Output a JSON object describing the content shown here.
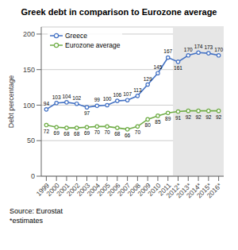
{
  "chart_data": {
    "type": "line",
    "title": "Greek debt in comparison to Eurozone average",
    "ylabel": "Debt percentage",
    "categories": [
      "1999",
      "2000",
      "2001",
      "2002",
      "2003",
      "2004",
      "2005",
      "2006",
      "2007",
      "2008",
      "2009",
      "2010",
      "2011",
      "2012*",
      "2013*",
      "2014*",
      "2015*",
      "2016*"
    ],
    "series": [
      {
        "name": "Greece",
        "color": "#4472C4",
        "values": [
          94,
          103,
          104,
          102,
          97,
          99,
          100,
          106,
          107,
          113,
          129,
          145,
          167,
          161,
          170,
          174,
          173,
          170
        ]
      },
      {
        "name": "Eurozone average",
        "color": "#70AD47",
        "values": [
          72,
          69,
          68,
          68,
          69,
          70,
          70,
          68,
          66,
          70,
          80,
          85,
          89,
          91,
          92,
          92,
          92,
          92
        ]
      }
    ],
    "ylim": [
      0,
      210
    ],
    "yticks": [
      0,
      50,
      100,
      150,
      200
    ],
    "grid": true,
    "legend": "upper left",
    "data_labels": true,
    "marker": "circle",
    "shaded_region": {
      "from": "2012*",
      "to": "2016*",
      "color": "#E6E6E6"
    },
    "annotations": [
      "Source: Eurostat",
      "*estimates"
    ]
  }
}
